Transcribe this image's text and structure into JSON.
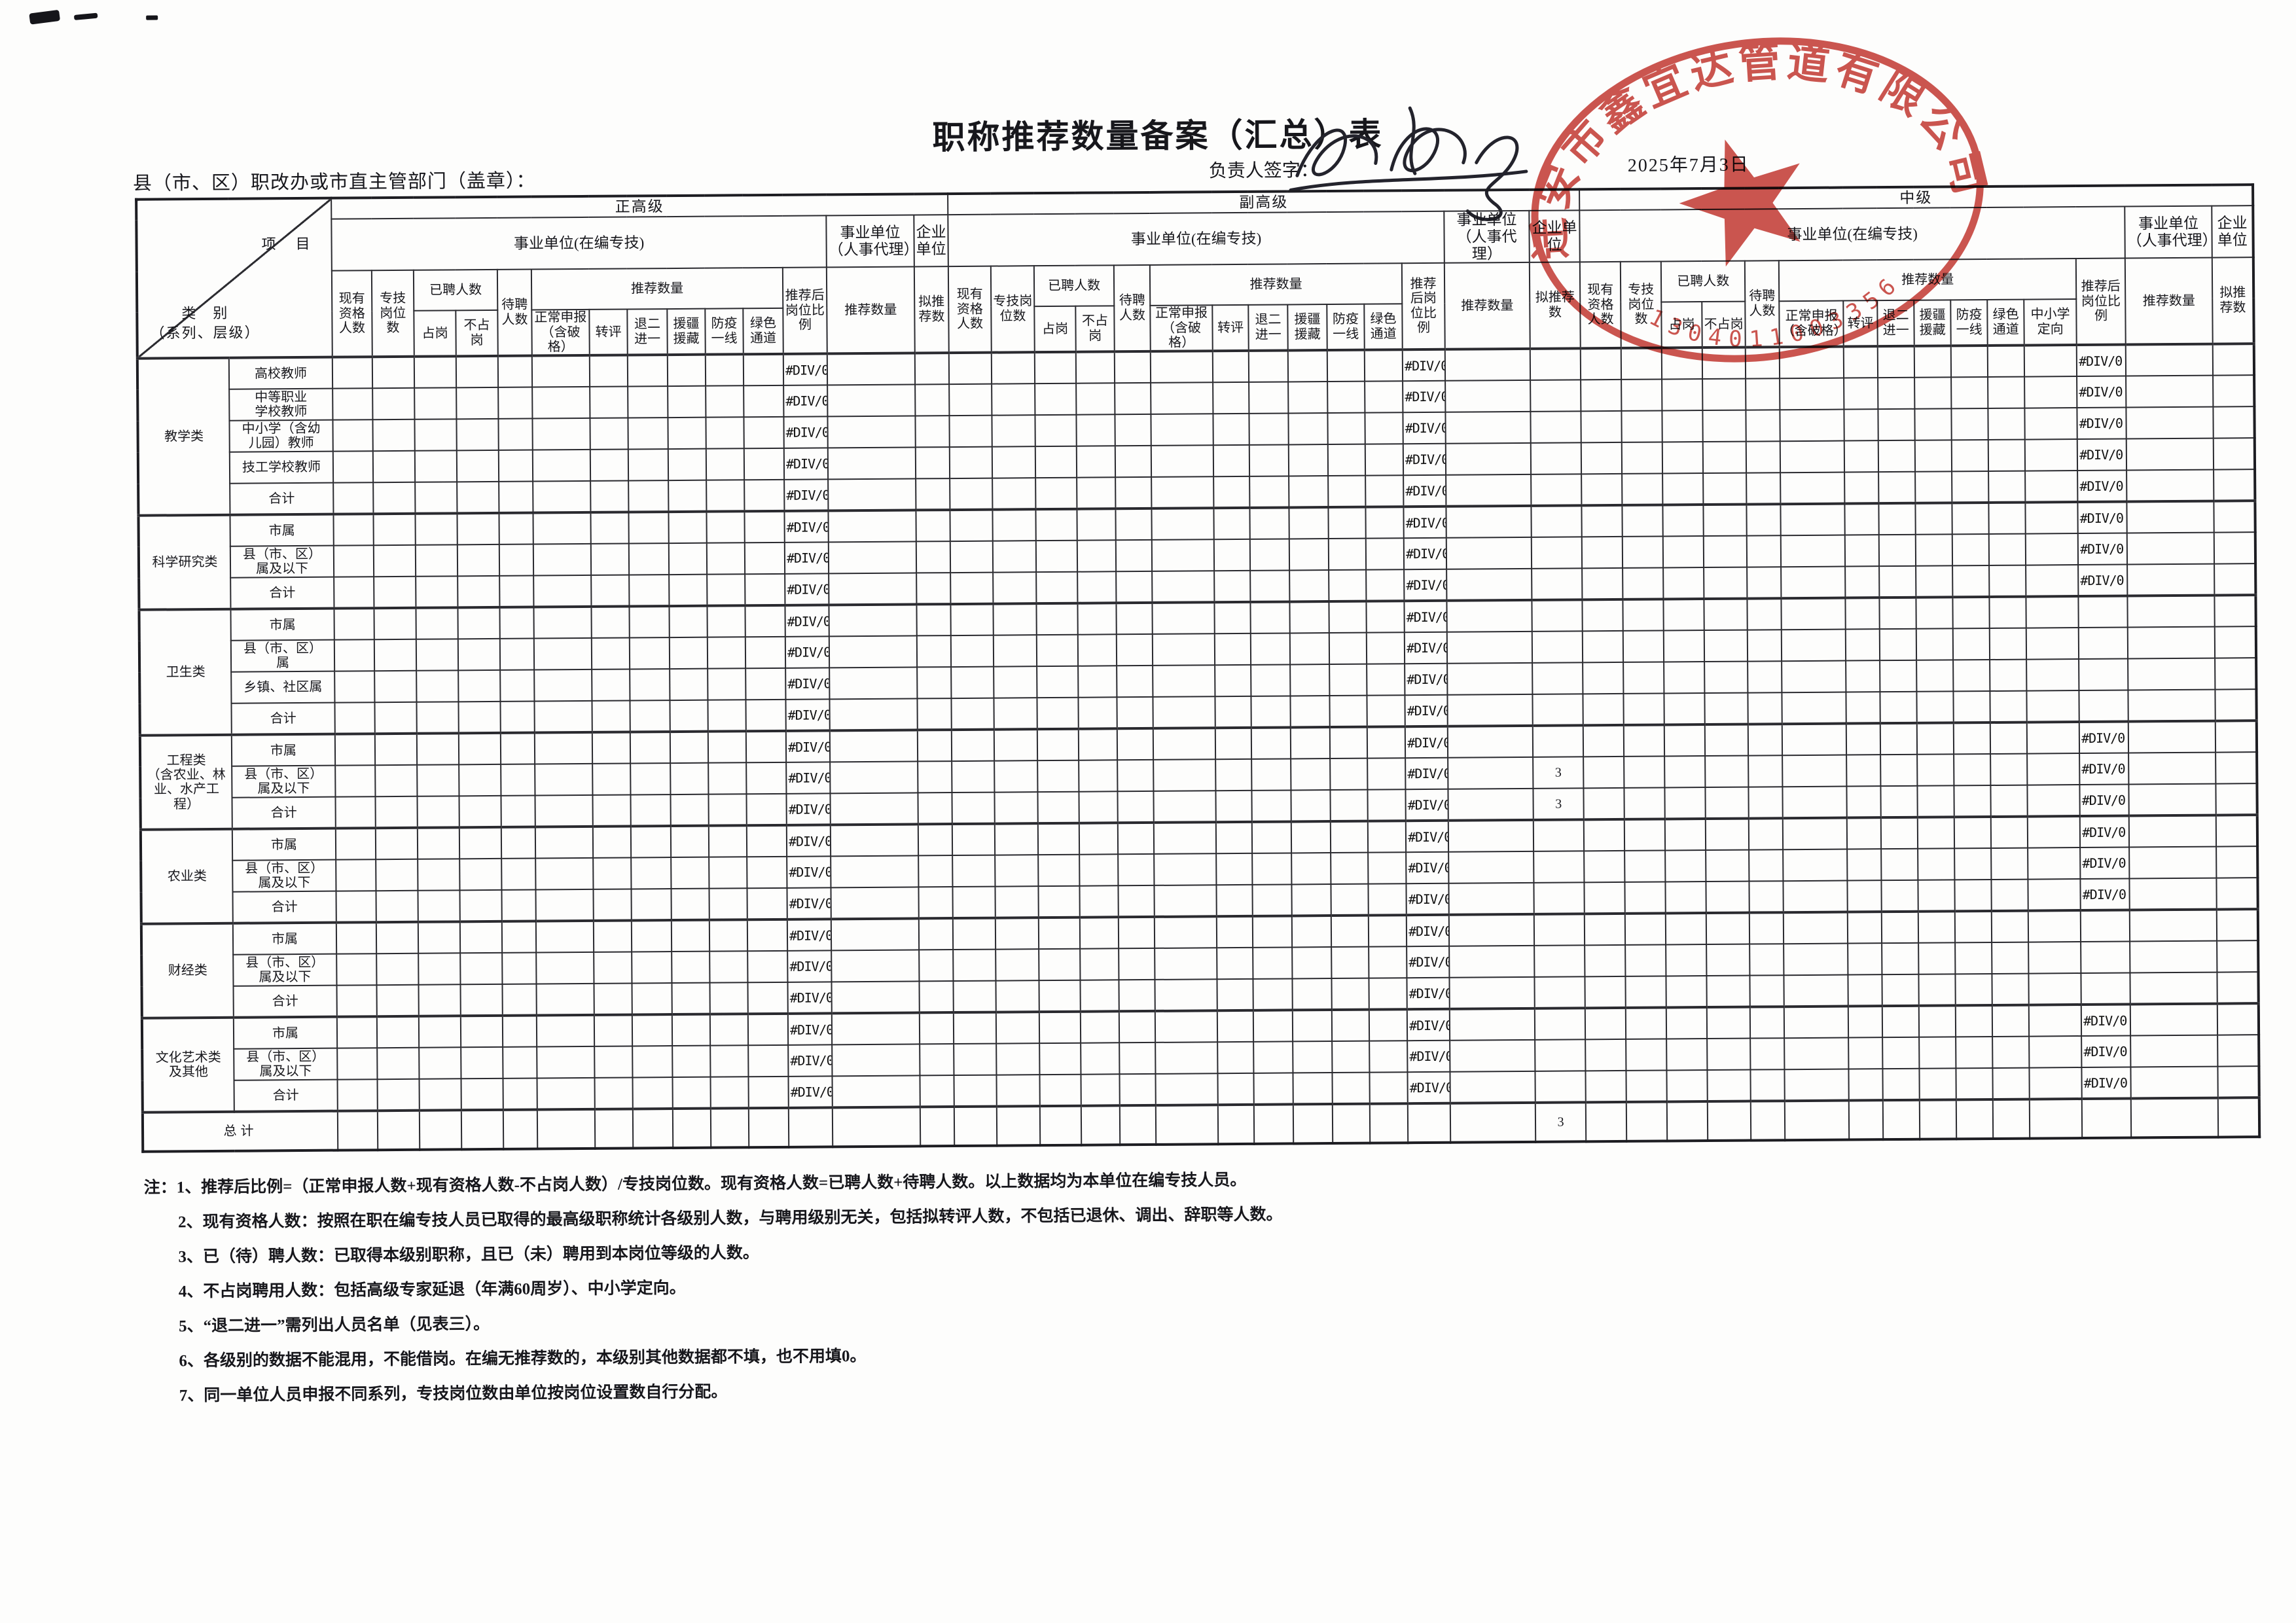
{
  "page": {
    "title": "职称推荐数量备案（汇总）表",
    "department_label": "县（市、区）职改办或市直主管部门（盖章）：",
    "signer_label": "负责人签字：",
    "date": "2025年7月3日"
  },
  "stamp": {
    "company_arc_text": "迁安市鑫宜达管道有限公司",
    "serial_number": "1304011003356",
    "color": "#c5423c",
    "icon": "star"
  },
  "corner": {
    "item_label": "项　目",
    "category_label": "类　别",
    "category_sub_label": "（系列、层级）"
  },
  "levels": [
    {
      "key": "zg",
      "label": "正高级",
      "extra_col": false
    },
    {
      "key": "fg",
      "label": "副高级",
      "extra_col": false
    },
    {
      "key": "zj",
      "label": "中级",
      "extra_col": true
    }
  ],
  "columns": {
    "inst_public": "事业单位(在编专技)",
    "inst_agency": "事业单位（人事代理）",
    "inst_enterprise": "企业单位",
    "existing": "现有资格人数",
    "post": "专技岗位数",
    "hired": "已聘人数",
    "hired_on": "占岗",
    "hired_off": "不占岗",
    "waiting": "待聘人数",
    "recommend": "推荐数量",
    "normal": "正常申报（含破格）",
    "zhuanping": "转评",
    "tui2jin1": "退二进一",
    "yuanjiang": "援疆援藏",
    "fangyi": "防疫一线",
    "green": "绿色通道",
    "dingxiang": "中小学定向",
    "ratio": "推荐后岗位比例",
    "agency_rec": "推荐数量",
    "enterprise_rec": "拟推荐数"
  },
  "rows": [
    {
      "cat": "教学类",
      "cat_span": 5,
      "series": "高校教师",
      "zg_ratio": "#DIV/0!",
      "fg_ratio": "#DIV/0!",
      "fg_ent": "",
      "zj_ratio": "#DIV/0!"
    },
    {
      "series": "中等职业\n学校教师",
      "zg_ratio": "#DIV/0!",
      "fg_ratio": "#DIV/0!",
      "fg_ent": "",
      "zj_ratio": "#DIV/0!"
    },
    {
      "series": "中小学（含幼\n儿园）教师",
      "zg_ratio": "#DIV/0!",
      "fg_ratio": "#DIV/0!",
      "fg_ent": "",
      "zj_ratio": "#DIV/0!"
    },
    {
      "series": "技工学校教师",
      "zg_ratio": "#DIV/0!",
      "fg_ratio": "#DIV/0!",
      "fg_ent": "",
      "zj_ratio": "#DIV/0!"
    },
    {
      "series": "合计",
      "zg_ratio": "#DIV/0!",
      "fg_ratio": "#DIV/0!",
      "fg_ent": "",
      "zj_ratio": "#DIV/0!"
    },
    {
      "cat": "科学研究类",
      "cat_span": 3,
      "series": "市属",
      "zg_ratio": "#DIV/0!",
      "fg_ratio": "#DIV/0!",
      "fg_ent": "",
      "zj_ratio": "#DIV/0!"
    },
    {
      "series": "县（市、区）\n属及以下",
      "zg_ratio": "#DIV/0!",
      "fg_ratio": "#DIV/0!",
      "fg_ent": "",
      "zj_ratio": "#DIV/0!"
    },
    {
      "series": "合计",
      "zg_ratio": "#DIV/0!",
      "fg_ratio": "#DIV/0!",
      "fg_ent": "",
      "zj_ratio": "#DIV/0!"
    },
    {
      "cat": "卫生类",
      "cat_span": 4,
      "series": "市属",
      "zg_ratio": "#DIV/0!",
      "fg_ratio": "#DIV/0!",
      "fg_ent": "",
      "zj_ratio": ""
    },
    {
      "series": "县（市、区）\n属",
      "zg_ratio": "#DIV/0!",
      "fg_ratio": "#DIV/0!",
      "fg_ent": "",
      "zj_ratio": ""
    },
    {
      "series": "乡镇、社区属",
      "zg_ratio": "#DIV/0!",
      "fg_ratio": "#DIV/0!",
      "fg_ent": "",
      "zj_ratio": ""
    },
    {
      "series": "合计",
      "zg_ratio": "#DIV/0!",
      "fg_ratio": "#DIV/0!",
      "fg_ent": "",
      "zj_ratio": ""
    },
    {
      "cat": "工程类\n（含农业、林\n业、水产工\n程）",
      "cat_span": 3,
      "series": "市属",
      "zg_ratio": "#DIV/0!",
      "fg_ratio": "#DIV/0!",
      "fg_ent": "",
      "zj_ratio": "#DIV/0!"
    },
    {
      "series": "县（市、区）\n属及以下",
      "zg_ratio": "#DIV/0!",
      "fg_ratio": "#DIV/0!",
      "fg_ent": "3",
      "zj_ratio": "#DIV/0!"
    },
    {
      "series": "合计",
      "zg_ratio": "#DIV/0!",
      "fg_ratio": "#DIV/0!",
      "fg_ent": "3",
      "zj_ratio": "#DIV/0!"
    },
    {
      "cat": "农业类",
      "cat_span": 3,
      "series": "市属",
      "zg_ratio": "#DIV/0!",
      "fg_ratio": "#DIV/0!",
      "fg_ent": "",
      "zj_ratio": "#DIV/0!"
    },
    {
      "series": "县（市、区）\n属及以下",
      "zg_ratio": "#DIV/0!",
      "fg_ratio": "#DIV/0!",
      "fg_ent": "",
      "zj_ratio": "#DIV/0!"
    },
    {
      "series": "合计",
      "zg_ratio": "#DIV/0!",
      "fg_ratio": "#DIV/0!",
      "fg_ent": "",
      "zj_ratio": "#DIV/0!"
    },
    {
      "cat": "财经类",
      "cat_span": 3,
      "series": "市属",
      "zg_ratio": "#DIV/0!",
      "fg_ratio": "#DIV/0!",
      "fg_ent": "",
      "zj_ratio": ""
    },
    {
      "series": "县（市、区）\n属及以下",
      "zg_ratio": "#DIV/0!",
      "fg_ratio": "#DIV/0!",
      "fg_ent": "",
      "zj_ratio": ""
    },
    {
      "series": "合计",
      "zg_ratio": "#DIV/0!",
      "fg_ratio": "#DIV/0!",
      "fg_ent": "",
      "zj_ratio": ""
    },
    {
      "cat": "文化艺术类\n及其他",
      "cat_span": 3,
      "series": "市属",
      "zg_ratio": "#DIV/0!",
      "fg_ratio": "#DIV/0!",
      "fg_ent": "",
      "zj_ratio": "#DIV/0!"
    },
    {
      "series": "县（市、区）\n属及以下",
      "zg_ratio": "#DIV/0!",
      "fg_ratio": "#DIV/0!",
      "fg_ent": "",
      "zj_ratio": "#DIV/0!"
    },
    {
      "series": "合计",
      "zg_ratio": "#DIV/0!",
      "fg_ratio": "#DIV/0!",
      "fg_ent": "",
      "zj_ratio": "#DIV/0!"
    }
  ],
  "total_row": {
    "label": "总计",
    "zg_ratio": "",
    "fg_ratio": "",
    "fg_ent": "3",
    "zj_ratio": ""
  },
  "notes_prefix": "注：",
  "notes": [
    "1、推荐后比例=（正常申报人数+现有资格人数-不占岗人数）/专技岗位数。现有资格人数=已聘人数+待聘人数。以上数据均为本单位在编专技人员。",
    "2、现有资格人数：按照在职在编专技人员已取得的最高级职称统计各级别人数，与聘用级别无关，包括拟转评人数，不包括已退休、调出、辞职等人数。",
    "3、已（待）聘人数：已取得本级别职称，且已（未）聘用到本岗位等级的人数。",
    "4、不占岗聘用人数：包括高级专家延退（年满60周岁）、中小学定向。",
    "5、“退二进一”需列出人员名单（见表三）。",
    "6、各级别的数据不能混用，不能借岗。在编无推荐数的，本级别其他数据都不填，也不用填0。",
    "7、同一单位人员申报不同系列，专技岗位数由单位按岗位设置数自行分配。"
  ]
}
